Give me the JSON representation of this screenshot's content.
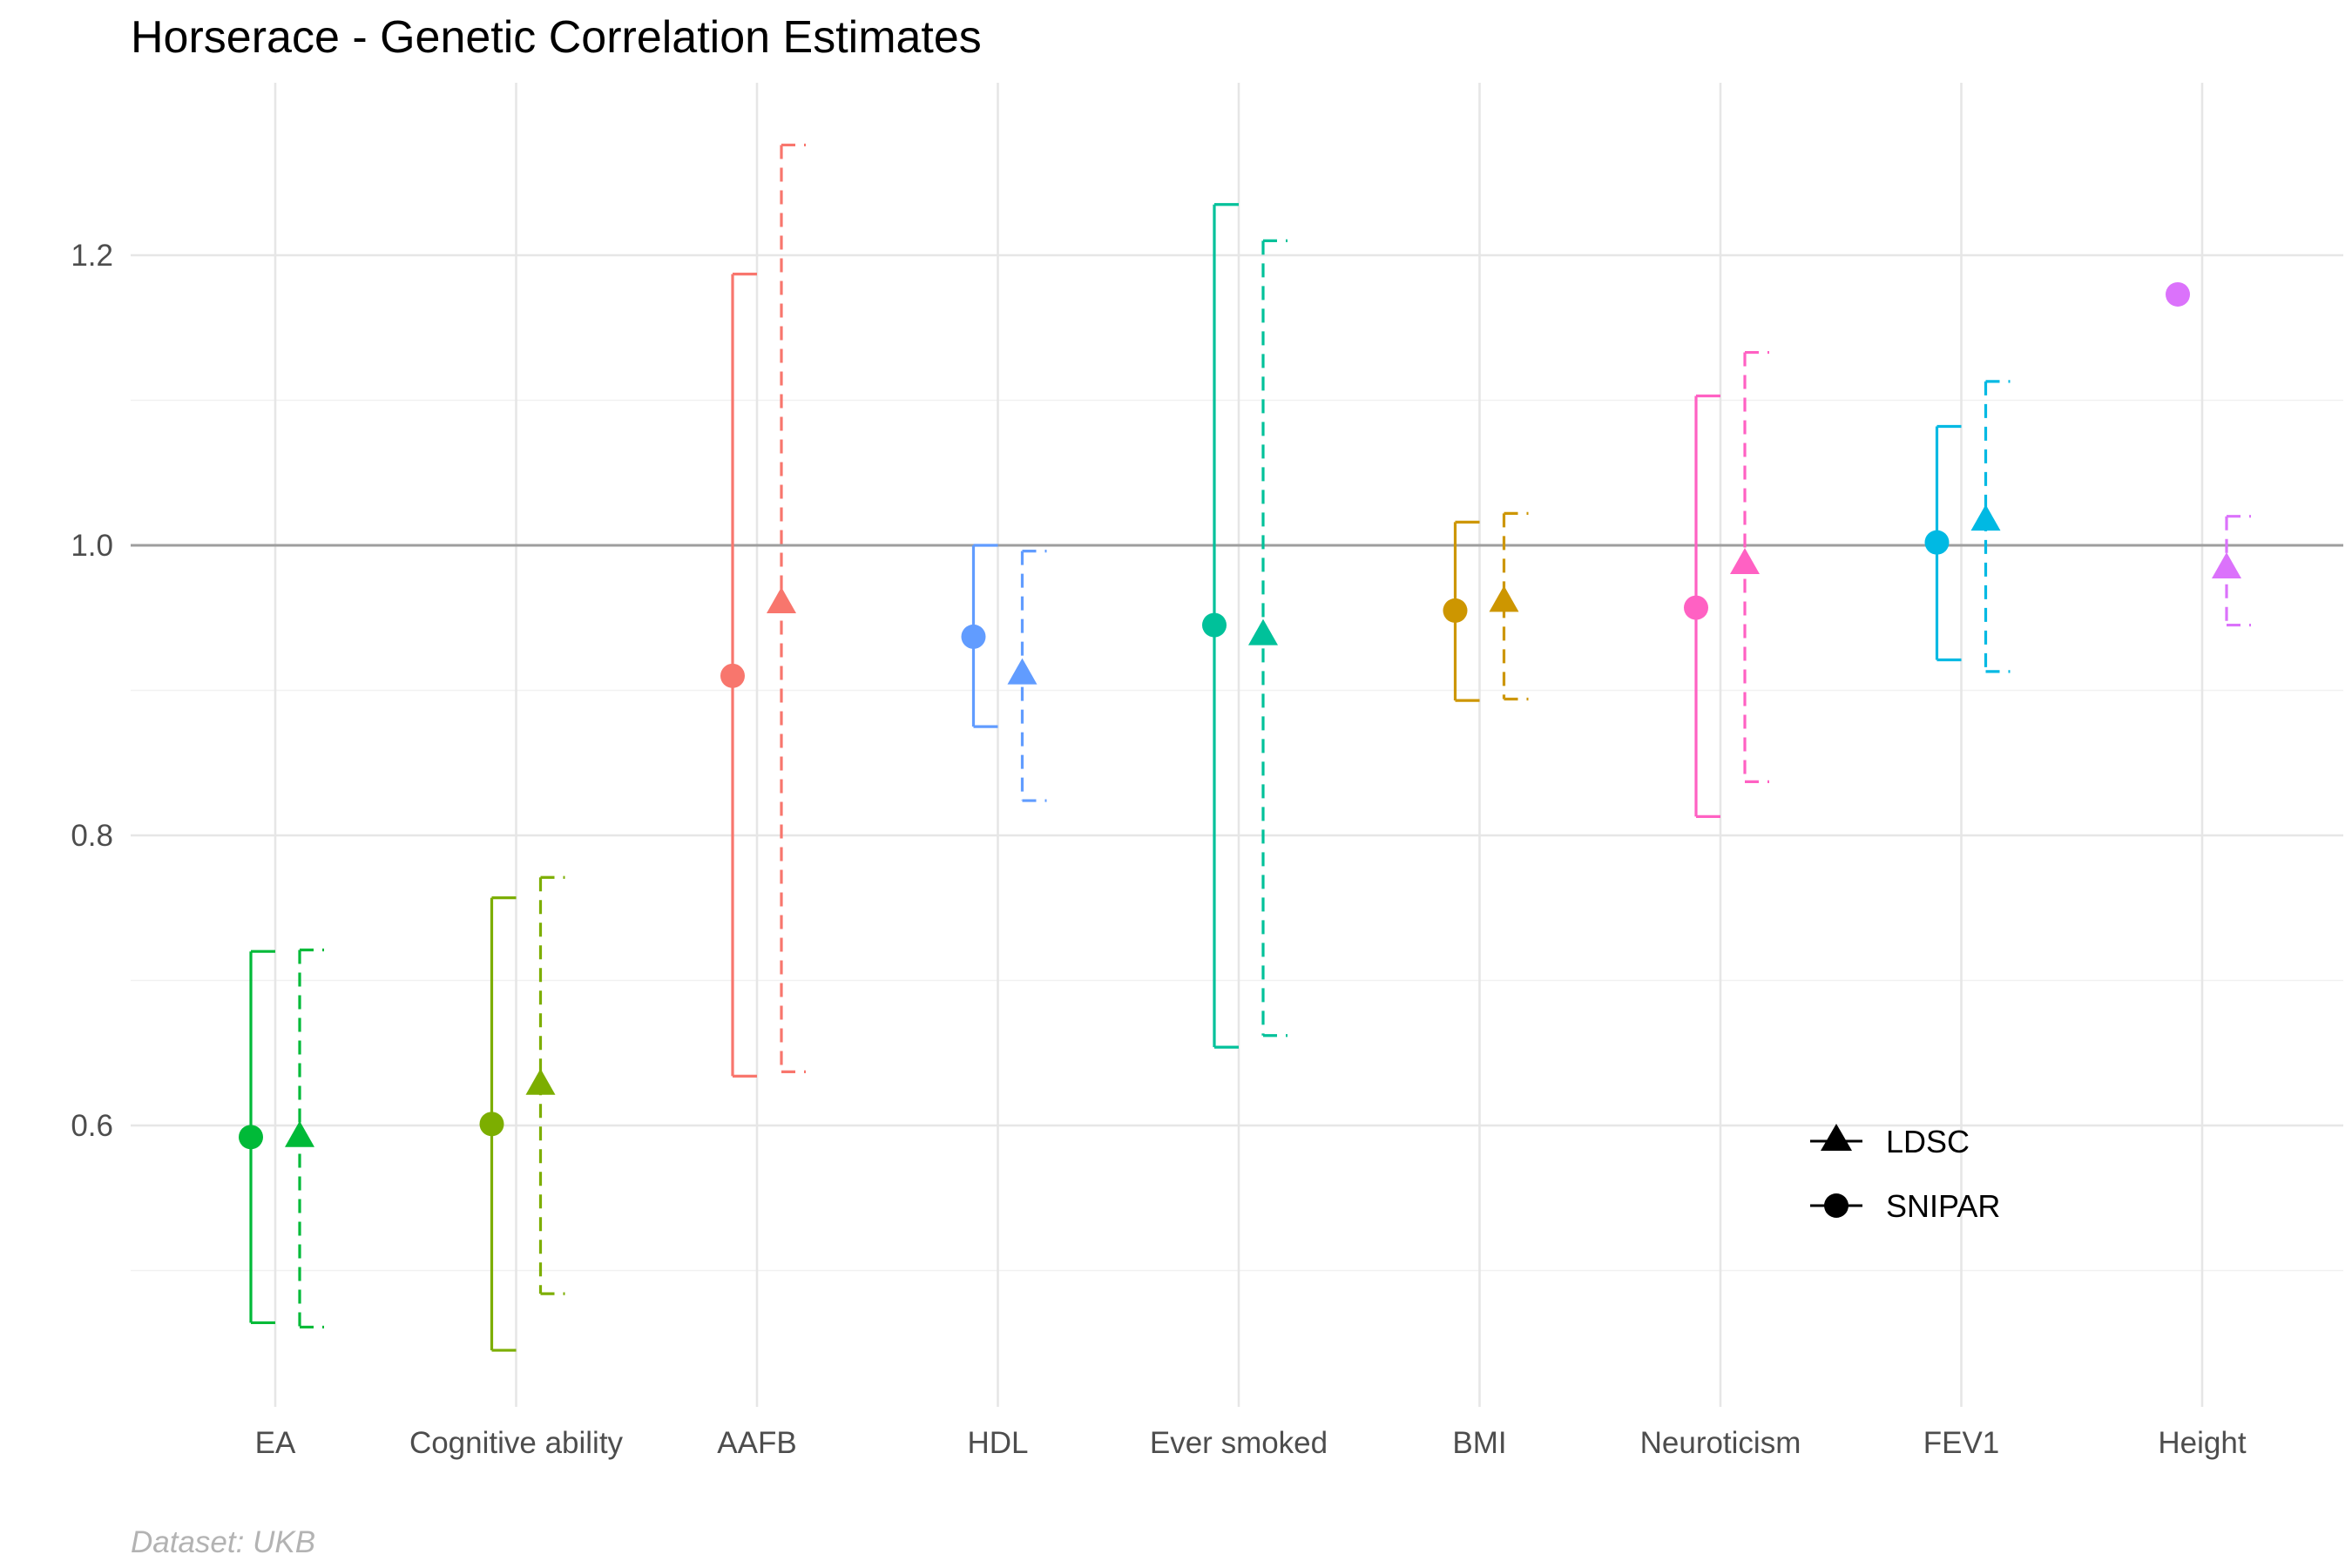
{
  "chart_data": {
    "type": "errorbar",
    "title": "Horserace - Genetic Correlation Estimates",
    "caption": "Dataset: UKB",
    "xlabel": "",
    "ylabel": "",
    "ylim": [
      0.41,
      1.31
    ],
    "yticks": [
      "0.6",
      "0.8",
      "1.0",
      "1.2"
    ],
    "reference_line": 1.0,
    "grid": true,
    "legend_position": "bottom-right",
    "categories": [
      "EA",
      "Cognitive ability",
      "AAFB",
      "HDL",
      "Ever smoked",
      "BMI",
      "Neuroticism",
      "FEV1",
      "Height"
    ],
    "colors": [
      "#00BA38",
      "#7CAE00",
      "#F8766D",
      "#619CFF",
      "#00C19A",
      "#CD9600",
      "#FF61C3",
      "#00B9E3",
      "#DB72FB"
    ],
    "series": [
      {
        "name": "SNIPAR",
        "marker": "circle",
        "line": "solid",
        "estimate": [
          0.592,
          0.601,
          0.91,
          0.937,
          0.945,
          0.955,
          0.957,
          1.002,
          1.173
        ],
        "lower": [
          0.464,
          0.445,
          0.634,
          0.875,
          0.654,
          0.893,
          0.813,
          0.921,
          null
        ],
        "upper": [
          0.72,
          0.757,
          1.187,
          1.0,
          1.235,
          1.016,
          1.103,
          1.082,
          null
        ]
      },
      {
        "name": "LDSC",
        "marker": "triangle",
        "line": "dashed",
        "estimate": [
          0.592,
          0.628,
          0.96,
          0.911,
          0.938,
          0.961,
          0.987,
          1.017,
          0.984
        ],
        "lower": [
          0.461,
          0.484,
          0.637,
          0.824,
          0.662,
          0.894,
          0.837,
          0.913,
          0.945
        ],
        "upper": [
          0.721,
          0.771,
          1.276,
          0.996,
          1.21,
          1.022,
          1.133,
          1.113,
          1.02
        ]
      }
    ]
  }
}
